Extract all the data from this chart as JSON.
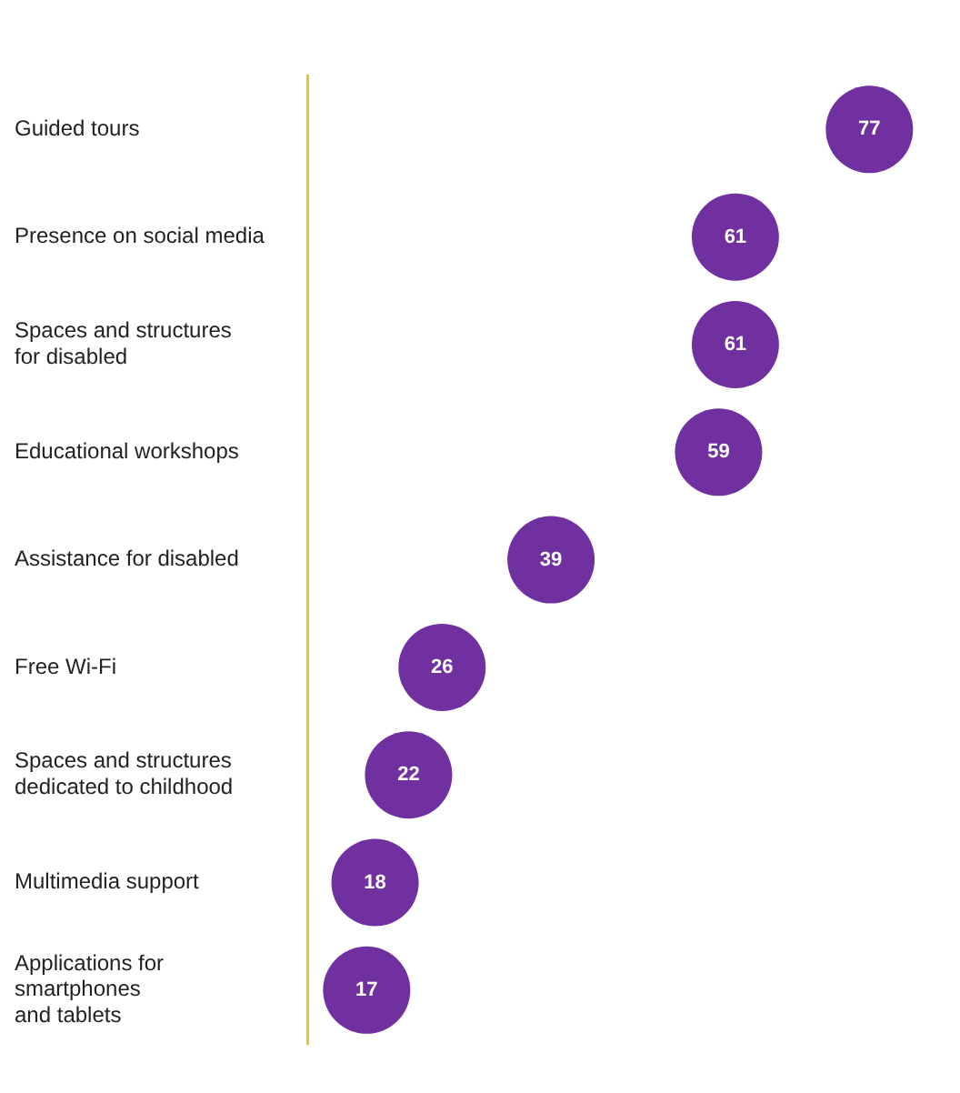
{
  "chart_data": {
    "type": "scatter",
    "orientation": "horizontal",
    "categories": [
      "Guided tours",
      "Presence on social media",
      "Spaces and structures\nfor disabled",
      "Educational workshops",
      "Assistance for disabled",
      "Free Wi-Fi",
      "Spaces and structures\ndedicated to childhood",
      "Multimedia support",
      "Applications for\nsmartphones\nand tablets"
    ],
    "values": [
      77,
      61,
      61,
      59,
      39,
      26,
      22,
      18,
      17
    ],
    "color": "#7030a0",
    "data_labels": true,
    "grid": false,
    "legend": false,
    "marker": "circle",
    "tick_labels": "y"
  }
}
